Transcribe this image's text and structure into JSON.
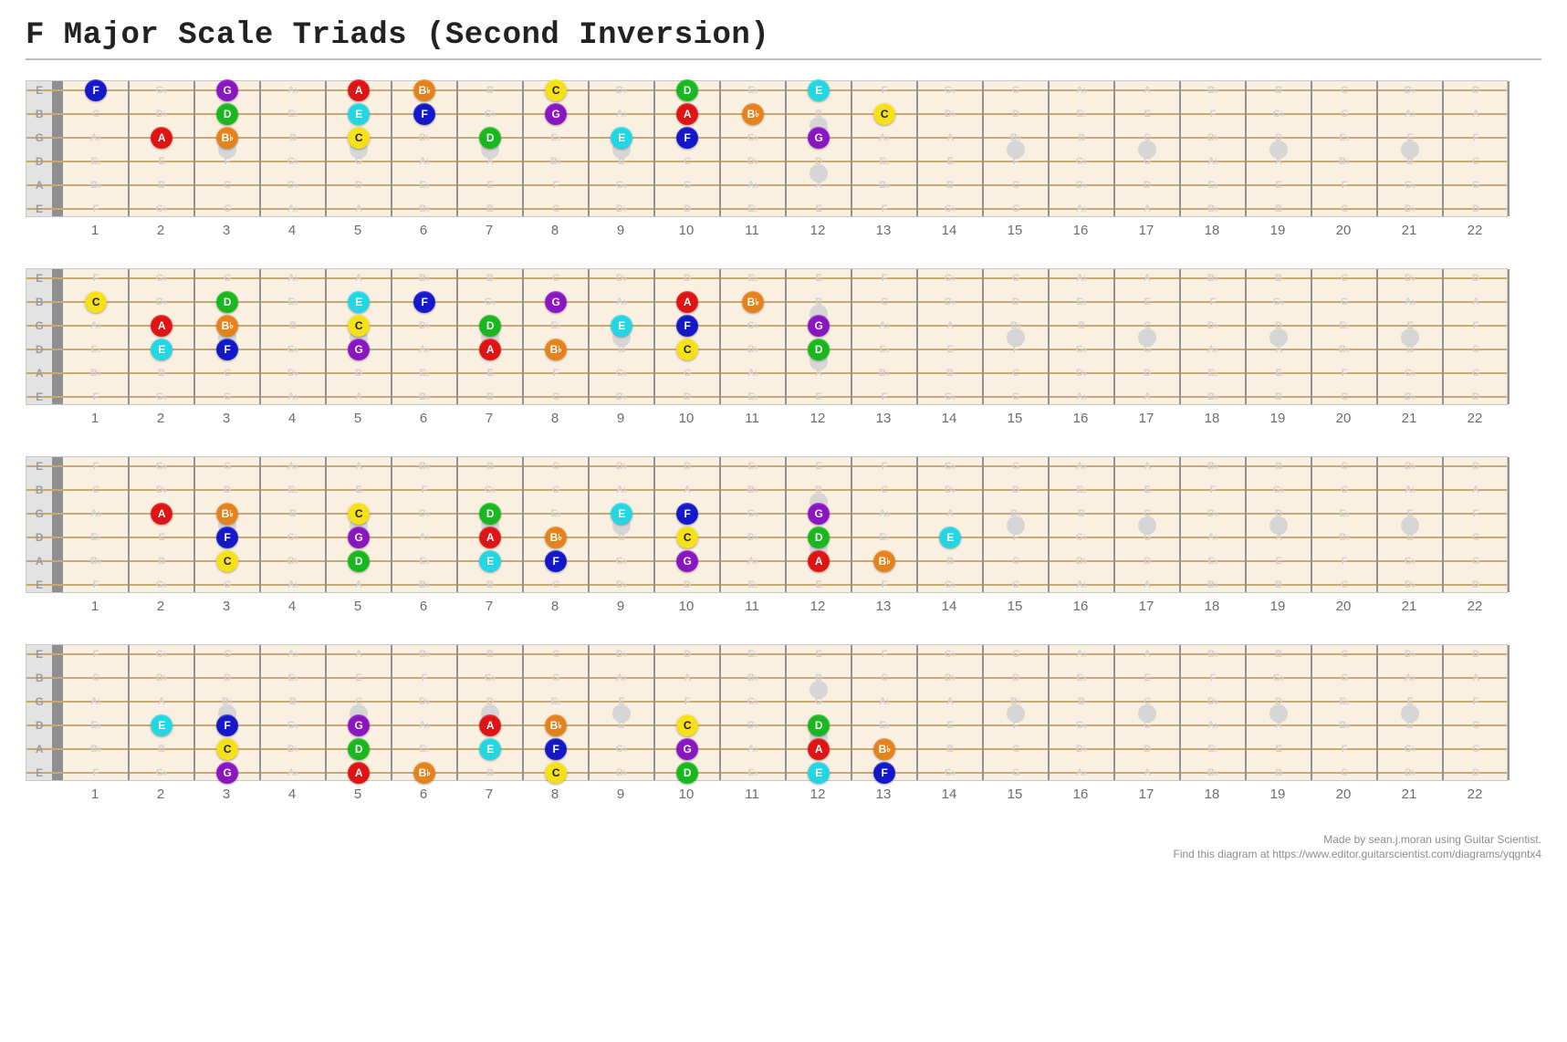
{
  "title": "F Major Scale Triads (Second Inversion)",
  "footer": {
    "line1": "Made by sean.j.moran using Guitar Scientist.",
    "line2": "Find this diagram at https://www.editor.guitarscientist.com/diagrams/yqgntx4"
  },
  "layout": {
    "frets": 22,
    "strings": 6,
    "open_width": 28,
    "nut_width": 12,
    "fret_width": 72,
    "string_spacing": 26,
    "board_top_pad": 10,
    "board_bottom_pad": 10,
    "background_color": "#faf0e1",
    "inlay_frets_single": [
      3,
      5,
      7,
      9,
      15,
      17,
      19,
      21
    ],
    "inlay_frets_double": [
      12
    ],
    "string_open_labels": [
      "E",
      "B",
      "G",
      "D",
      "A",
      "E"
    ]
  },
  "chromatic": [
    "E",
    "F",
    "Gb",
    "G",
    "Ab",
    "A",
    "Bb",
    "B",
    "C",
    "Db",
    "D",
    "Eb"
  ],
  "open_notes": [
    "E",
    "B",
    "G",
    "D",
    "A",
    "E"
  ],
  "color_map": {
    "F": {
      "bg": "#1318c9",
      "dark": false
    },
    "G": {
      "bg": "#8a16c1",
      "dark": false
    },
    "A": {
      "bg": "#e01414",
      "dark": false
    },
    "Bb": {
      "bg": "#e5821b",
      "dark": false
    },
    "C": {
      "bg": "#f5e116",
      "dark": true
    },
    "D": {
      "bg": "#18b81e",
      "dark": false
    },
    "E": {
      "bg": "#22d7e3",
      "dark": false
    }
  },
  "boards": [
    {
      "dots": [
        {
          "string": 1,
          "fret": 1,
          "note": "F"
        },
        {
          "string": 1,
          "fret": 3,
          "note": "G"
        },
        {
          "string": 1,
          "fret": 5,
          "note": "A"
        },
        {
          "string": 1,
          "fret": 6,
          "note": "Bb"
        },
        {
          "string": 1,
          "fret": 8,
          "note": "C"
        },
        {
          "string": 1,
          "fret": 10,
          "note": "D"
        },
        {
          "string": 1,
          "fret": 12,
          "note": "E"
        },
        {
          "string": 2,
          "fret": 3,
          "note": "D"
        },
        {
          "string": 2,
          "fret": 5,
          "note": "E"
        },
        {
          "string": 2,
          "fret": 6,
          "note": "F"
        },
        {
          "string": 2,
          "fret": 8,
          "note": "G"
        },
        {
          "string": 2,
          "fret": 10,
          "note": "A"
        },
        {
          "string": 2,
          "fret": 11,
          "note": "Bb"
        },
        {
          "string": 2,
          "fret": 13,
          "note": "C"
        },
        {
          "string": 3,
          "fret": 2,
          "note": "A"
        },
        {
          "string": 3,
          "fret": 3,
          "note": "Bb"
        },
        {
          "string": 3,
          "fret": 5,
          "note": "C"
        },
        {
          "string": 3,
          "fret": 7,
          "note": "D"
        },
        {
          "string": 3,
          "fret": 9,
          "note": "E"
        },
        {
          "string": 3,
          "fret": 10,
          "note": "F"
        },
        {
          "string": 3,
          "fret": 12,
          "note": "G"
        }
      ]
    },
    {
      "dots": [
        {
          "string": 2,
          "fret": 1,
          "note": "C"
        },
        {
          "string": 2,
          "fret": 3,
          "note": "D"
        },
        {
          "string": 2,
          "fret": 5,
          "note": "E"
        },
        {
          "string": 2,
          "fret": 6,
          "note": "F"
        },
        {
          "string": 2,
          "fret": 8,
          "note": "G"
        },
        {
          "string": 2,
          "fret": 10,
          "note": "A"
        },
        {
          "string": 2,
          "fret": 11,
          "note": "Bb"
        },
        {
          "string": 3,
          "fret": 2,
          "note": "A"
        },
        {
          "string": 3,
          "fret": 3,
          "note": "Bb"
        },
        {
          "string": 3,
          "fret": 5,
          "note": "C"
        },
        {
          "string": 3,
          "fret": 7,
          "note": "D"
        },
        {
          "string": 3,
          "fret": 9,
          "note": "E"
        },
        {
          "string": 3,
          "fret": 10,
          "note": "F"
        },
        {
          "string": 3,
          "fret": 12,
          "note": "G"
        },
        {
          "string": 4,
          "fret": 2,
          "note": "E"
        },
        {
          "string": 4,
          "fret": 3,
          "note": "F"
        },
        {
          "string": 4,
          "fret": 5,
          "note": "G"
        },
        {
          "string": 4,
          "fret": 7,
          "note": "A"
        },
        {
          "string": 4,
          "fret": 8,
          "note": "Bb"
        },
        {
          "string": 4,
          "fret": 10,
          "note": "C"
        },
        {
          "string": 4,
          "fret": 12,
          "note": "D"
        }
      ]
    },
    {
      "dots": [
        {
          "string": 3,
          "fret": 2,
          "note": "A"
        },
        {
          "string": 3,
          "fret": 3,
          "note": "Bb"
        },
        {
          "string": 3,
          "fret": 5,
          "note": "C"
        },
        {
          "string": 3,
          "fret": 7,
          "note": "D"
        },
        {
          "string": 3,
          "fret": 9,
          "note": "E"
        },
        {
          "string": 3,
          "fret": 10,
          "note": "F"
        },
        {
          "string": 3,
          "fret": 12,
          "note": "G"
        },
        {
          "string": 4,
          "fret": 3,
          "note": "F"
        },
        {
          "string": 4,
          "fret": 5,
          "note": "G"
        },
        {
          "string": 4,
          "fret": 7,
          "note": "A"
        },
        {
          "string": 4,
          "fret": 8,
          "note": "Bb"
        },
        {
          "string": 4,
          "fret": 10,
          "note": "C"
        },
        {
          "string": 4,
          "fret": 12,
          "note": "D"
        },
        {
          "string": 4,
          "fret": 14,
          "note": "E"
        },
        {
          "string": 5,
          "fret": 3,
          "note": "C"
        },
        {
          "string": 5,
          "fret": 5,
          "note": "D"
        },
        {
          "string": 5,
          "fret": 7,
          "note": "E"
        },
        {
          "string": 5,
          "fret": 8,
          "note": "F"
        },
        {
          "string": 5,
          "fret": 10,
          "note": "G"
        },
        {
          "string": 5,
          "fret": 12,
          "note": "A"
        },
        {
          "string": 5,
          "fret": 13,
          "note": "Bb"
        }
      ]
    },
    {
      "dots": [
        {
          "string": 4,
          "fret": 2,
          "note": "E"
        },
        {
          "string": 4,
          "fret": 3,
          "note": "F"
        },
        {
          "string": 4,
          "fret": 5,
          "note": "G"
        },
        {
          "string": 4,
          "fret": 7,
          "note": "A"
        },
        {
          "string": 4,
          "fret": 8,
          "note": "Bb"
        },
        {
          "string": 4,
          "fret": 10,
          "note": "C"
        },
        {
          "string": 4,
          "fret": 12,
          "note": "D"
        },
        {
          "string": 5,
          "fret": 3,
          "note": "C"
        },
        {
          "string": 5,
          "fret": 5,
          "note": "D"
        },
        {
          "string": 5,
          "fret": 7,
          "note": "E"
        },
        {
          "string": 5,
          "fret": 8,
          "note": "F"
        },
        {
          "string": 5,
          "fret": 10,
          "note": "G"
        },
        {
          "string": 5,
          "fret": 12,
          "note": "A"
        },
        {
          "string": 5,
          "fret": 13,
          "note": "Bb"
        },
        {
          "string": 6,
          "fret": 3,
          "note": "G"
        },
        {
          "string": 6,
          "fret": 5,
          "note": "A"
        },
        {
          "string": 6,
          "fret": 6,
          "note": "Bb"
        },
        {
          "string": 6,
          "fret": 8,
          "note": "C"
        },
        {
          "string": 6,
          "fret": 10,
          "note": "D"
        },
        {
          "string": 6,
          "fret": 12,
          "note": "E"
        },
        {
          "string": 6,
          "fret": 13,
          "note": "F"
        }
      ]
    }
  ]
}
